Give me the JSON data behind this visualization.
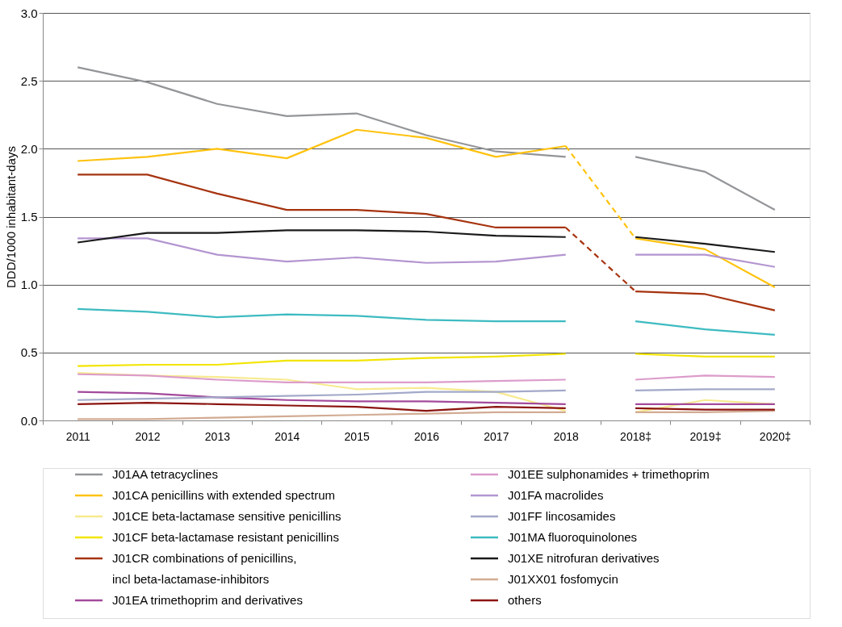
{
  "chart_data": {
    "type": "line",
    "ylabel": "DDD/1000 inhabitant-days",
    "categories": [
      "2011",
      "2012",
      "2013",
      "2014",
      "2015",
      "2016",
      "2017",
      "2018",
      "2018‡",
      "2019‡",
      "2020‡"
    ],
    "ylim": [
      0,
      3
    ],
    "yticks": [
      {
        "value": 0,
        "label": "0.0"
      },
      {
        "value": 0.5,
        "label": "0.5"
      },
      {
        "value": 1,
        "label": "1.0"
      },
      {
        "value": 1.5,
        "label": "1.5"
      },
      {
        "value": 2,
        "label": "2.0"
      },
      {
        "value": 2.5,
        "label": "2.5"
      },
      {
        "value": 3,
        "label": "3.0"
      }
    ],
    "grid": "y",
    "legend": "bottom",
    "marker": "none",
    "line_style": "solid",
    "series": [
      {
        "name": "J01AA tetracyclines",
        "color": "#939598",
        "values": [
          2.6,
          2.49,
          2.33,
          2.24,
          2.26,
          2.1,
          1.98,
          1.94,
          null,
          null,
          null
        ]
      },
      {
        "color": "#939598",
        "values": [
          null,
          null,
          null,
          null,
          null,
          null,
          null,
          null,
          1.94,
          1.83,
          1.55
        ]
      },
      {
        "name": "J01CA penicillins with extended spectrum",
        "color": "#ffc20e",
        "values": [
          1.91,
          1.94,
          2.0,
          1.93,
          2.14,
          2.08,
          1.94,
          2.02,
          null,
          null,
          null
        ]
      },
      {
        "color": "#ffc20e",
        "values": [
          null,
          null,
          null,
          null,
          null,
          null,
          null,
          null,
          1.34,
          1.26,
          0.98
        ]
      },
      {
        "color": "#ffc20e",
        "line_style": "dashed",
        "values": [
          null,
          null,
          null,
          null,
          null,
          null,
          null,
          2.02,
          1.34,
          null,
          null
        ]
      },
      {
        "name": "J01CE beta-lactamase sensitive penicillins",
        "color": "#f7ea8f",
        "values": [
          0.35,
          0.33,
          0.32,
          0.3,
          0.23,
          0.24,
          0.21,
          0.07,
          null,
          null,
          null
        ]
      },
      {
        "color": "#f7ea8f",
        "values": [
          null,
          null,
          null,
          null,
          null,
          null,
          null,
          null,
          0.06,
          0.15,
          0.12
        ]
      },
      {
        "name": "J01CF beta-lactamase resistant penicillins",
        "color": "#f2e500",
        "values": [
          0.4,
          0.41,
          0.41,
          0.44,
          0.44,
          0.46,
          0.47,
          0.49,
          null,
          null,
          null
        ]
      },
      {
        "color": "#f2e500",
        "values": [
          null,
          null,
          null,
          null,
          null,
          null,
          null,
          null,
          0.49,
          0.47,
          0.47
        ]
      },
      {
        "name": "J01CR combinations of penicillins,\nincl beta-lactamase-inhibitors",
        "color": "#a6330f",
        "values": [
          1.81,
          1.81,
          1.67,
          1.55,
          1.55,
          1.52,
          1.42,
          1.42,
          null,
          null,
          null
        ]
      },
      {
        "color": "#a6330f",
        "values": [
          null,
          null,
          null,
          null,
          null,
          null,
          null,
          null,
          0.95,
          0.93,
          0.81
        ]
      },
      {
        "color": "#a6330f",
        "line_style": "dashed",
        "values": [
          null,
          null,
          null,
          null,
          null,
          null,
          null,
          1.42,
          0.95,
          null,
          null
        ]
      },
      {
        "name": "J01EA trimethoprim and derivatives",
        "color": "#a34a9c",
        "values": [
          0.21,
          0.2,
          0.17,
          0.15,
          0.14,
          0.14,
          0.13,
          0.12,
          null,
          null,
          null
        ]
      },
      {
        "color": "#a34a9c",
        "values": [
          null,
          null,
          null,
          null,
          null,
          null,
          null,
          null,
          0.12,
          0.12,
          0.12
        ]
      },
      {
        "name": "J01EE sulphonamides + trimethoprim",
        "color": "#dc9ccb",
        "values": [
          0.34,
          0.33,
          0.3,
          0.28,
          0.28,
          0.28,
          0.29,
          0.3,
          null,
          null,
          null
        ]
      },
      {
        "color": "#dc9ccb",
        "values": [
          null,
          null,
          null,
          null,
          null,
          null,
          null,
          null,
          0.3,
          0.33,
          0.32
        ]
      },
      {
        "name": "J01FA macrolides",
        "color": "#b395d0",
        "values": [
          1.34,
          1.34,
          1.22,
          1.17,
          1.2,
          1.16,
          1.17,
          1.22,
          null,
          null,
          null
        ]
      },
      {
        "color": "#b395d0",
        "values": [
          null,
          null,
          null,
          null,
          null,
          null,
          null,
          null,
          1.22,
          1.22,
          1.13
        ]
      },
      {
        "name": "J01FF lincosamides",
        "color": "#a3a9c9",
        "values": [
          0.15,
          0.16,
          0.17,
          0.18,
          0.19,
          0.21,
          0.21,
          0.22,
          null,
          null,
          null
        ]
      },
      {
        "color": "#a3a9c9",
        "values": [
          null,
          null,
          null,
          null,
          null,
          null,
          null,
          null,
          0.22,
          0.23,
          0.23
        ]
      },
      {
        "name": "J01MA fluoroquinolones",
        "color": "#3ebbc1",
        "values": [
          0.82,
          0.8,
          0.76,
          0.78,
          0.77,
          0.74,
          0.73,
          0.73,
          null,
          null,
          null
        ]
      },
      {
        "color": "#3ebbc1",
        "values": [
          null,
          null,
          null,
          null,
          null,
          null,
          null,
          null,
          0.73,
          0.67,
          0.63
        ]
      },
      {
        "name": "J01XE nitrofuran derivatives",
        "color": "#1a1a1a",
        "values": [
          1.31,
          1.38,
          1.38,
          1.4,
          1.4,
          1.39,
          1.36,
          1.35,
          null,
          null,
          null
        ]
      },
      {
        "color": "#1a1a1a",
        "values": [
          null,
          null,
          null,
          null,
          null,
          null,
          null,
          null,
          1.35,
          1.3,
          1.24
        ]
      },
      {
        "name": "J01XX01 fosfomycin",
        "color": "#d2ab93",
        "values": [
          0.01,
          0.01,
          0.02,
          0.03,
          0.04,
          0.05,
          0.06,
          0.06,
          null,
          null,
          null
        ]
      },
      {
        "color": "#d2ab93",
        "values": [
          null,
          null,
          null,
          null,
          null,
          null,
          null,
          null,
          0.06,
          0.06,
          0.07
        ]
      },
      {
        "name": "others",
        "color": "#8b1410",
        "values": [
          0.12,
          0.13,
          0.12,
          0.11,
          0.1,
          0.07,
          0.1,
          0.09,
          null,
          null,
          null
        ]
      },
      {
        "color": "#8b1410",
        "values": [
          null,
          null,
          null,
          null,
          null,
          null,
          null,
          null,
          0.09,
          0.08,
          0.08
        ]
      }
    ]
  }
}
